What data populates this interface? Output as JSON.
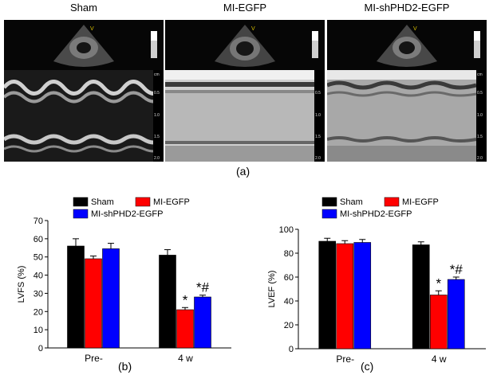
{
  "figure": {
    "columns": [
      "Sham",
      "MI-EGFP",
      "MI-shPHD2-EGFP"
    ],
    "echo_scale_labels": [
      "cm",
      "0.5",
      "1.0",
      "1.5",
      "2.0"
    ],
    "panel_labels": [
      "(a)",
      "(b)",
      "(c)"
    ]
  },
  "chart_data": [
    {
      "type": "bar",
      "title": "",
      "ylabel": "LVFS (%)",
      "xlabel": "",
      "ylim": [
        0,
        70
      ],
      "yticks": [
        0,
        10,
        20,
        30,
        40,
        50,
        60,
        70
      ],
      "categories": [
        "Pre-",
        "4 w"
      ],
      "series": [
        {
          "name": "Sham",
          "color": "#000000",
          "values": [
            56,
            51
          ],
          "errors": [
            4,
            3
          ]
        },
        {
          "name": "MI-EGFP",
          "color": "#ff0000",
          "values": [
            49,
            21
          ],
          "errors": [
            1.5,
            1.2
          ]
        },
        {
          "name": "MI-shPHD2-EGFP",
          "color": "#0000ff",
          "values": [
            54.5,
            28
          ],
          "errors": [
            3,
            1
          ]
        }
      ],
      "annotations": [
        {
          "category": "4 w",
          "series": "MI-EGFP",
          "text": "*"
        },
        {
          "category": "4 w",
          "series": "MI-shPHD2-EGFP",
          "text": "*#"
        }
      ]
    },
    {
      "type": "bar",
      "title": "",
      "ylabel": "LVEF (%)",
      "xlabel": "",
      "ylim": [
        0,
        100
      ],
      "yticks": [
        0,
        20,
        40,
        60,
        80,
        100
      ],
      "categories": [
        "Pre-",
        "4 w"
      ],
      "series": [
        {
          "name": "Sham",
          "color": "#000000",
          "values": [
            90,
            87
          ],
          "errors": [
            2.5,
            2.5
          ]
        },
        {
          "name": "MI-EGFP",
          "color": "#ff0000",
          "values": [
            88,
            45
          ],
          "errors": [
            2.5,
            3.5
          ]
        },
        {
          "name": "MI-shPHD2-EGFP",
          "color": "#0000ff",
          "values": [
            89,
            58
          ],
          "errors": [
            2.5,
            2
          ]
        }
      ],
      "annotations": [
        {
          "category": "4 w",
          "series": "MI-EGFP",
          "text": "*"
        },
        {
          "category": "4 w",
          "series": "MI-shPHD2-EGFP",
          "text": "*#"
        }
      ]
    }
  ]
}
